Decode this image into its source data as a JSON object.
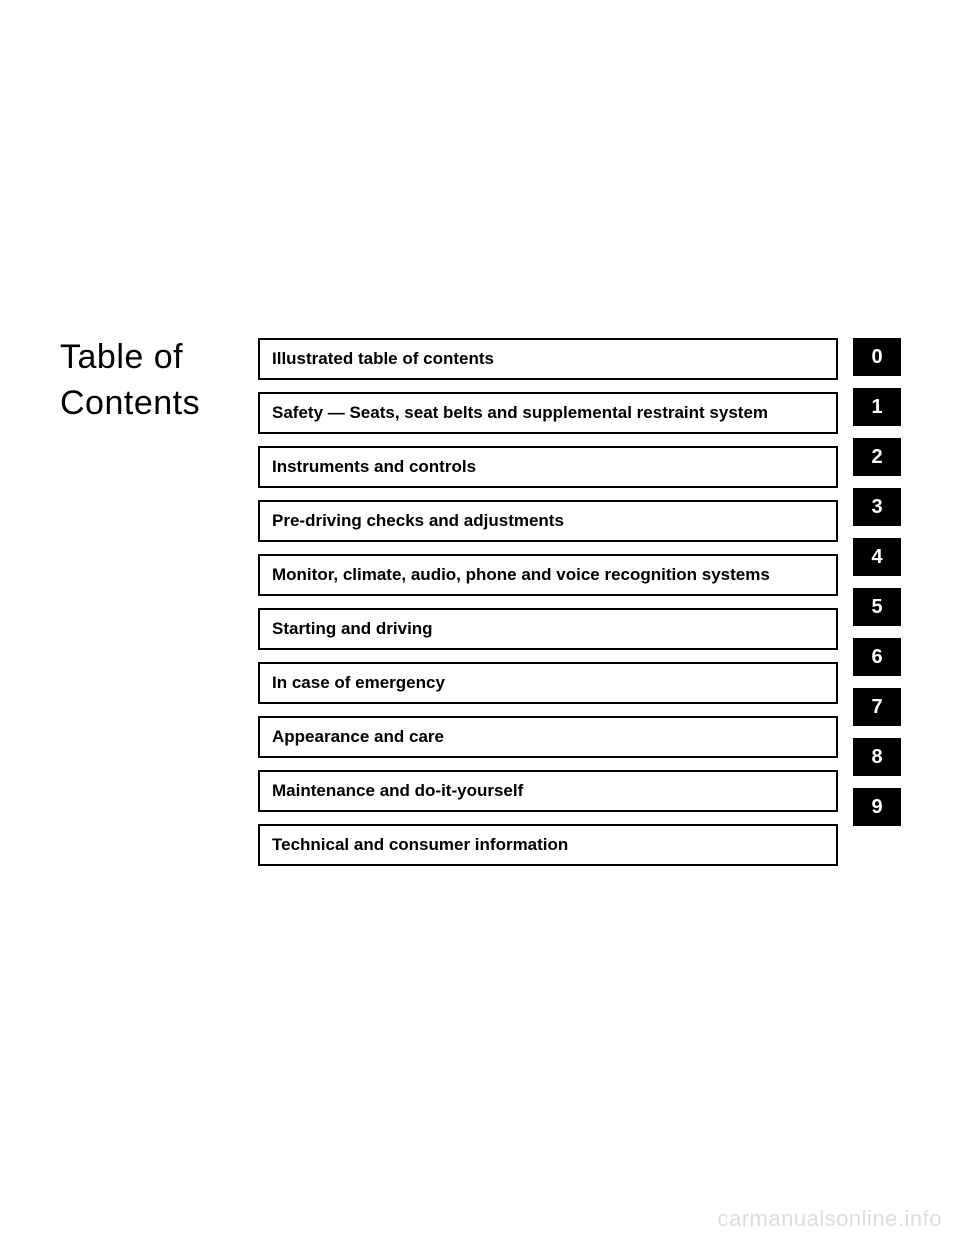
{
  "heading_line1": "Table of",
  "heading_line2": "Contents",
  "toc": {
    "items": [
      {
        "label": "Illustrated table of contents",
        "num": "0"
      },
      {
        "label": "Safety — Seats, seat belts and supplemental restraint system",
        "num": "1"
      },
      {
        "label": "Instruments and controls",
        "num": "2"
      },
      {
        "label": "Pre-driving checks and adjustments",
        "num": "3"
      },
      {
        "label": "Monitor, climate, audio, phone and voice recognition systems",
        "num": "4"
      },
      {
        "label": "Starting and driving",
        "num": "5"
      },
      {
        "label": "In case of emergency",
        "num": "6"
      },
      {
        "label": "Appearance and care",
        "num": "7"
      },
      {
        "label": "Maintenance and do-it-yourself",
        "num": "8"
      },
      {
        "label": "Technical and consumer information",
        "num": "9"
      }
    ]
  },
  "watermark": "carmanualsonline.info",
  "style": {
    "page_bg": "#ffffff",
    "text_color": "#000000",
    "tab_bg": "#000000",
    "tab_fg": "#ffffff",
    "item_border": "#000000",
    "heading_fontsize": 34,
    "item_fontsize": 17,
    "tab_fontsize": 20,
    "row_gap": 12,
    "item_height": 38,
    "watermark_color": "#dddddd"
  }
}
